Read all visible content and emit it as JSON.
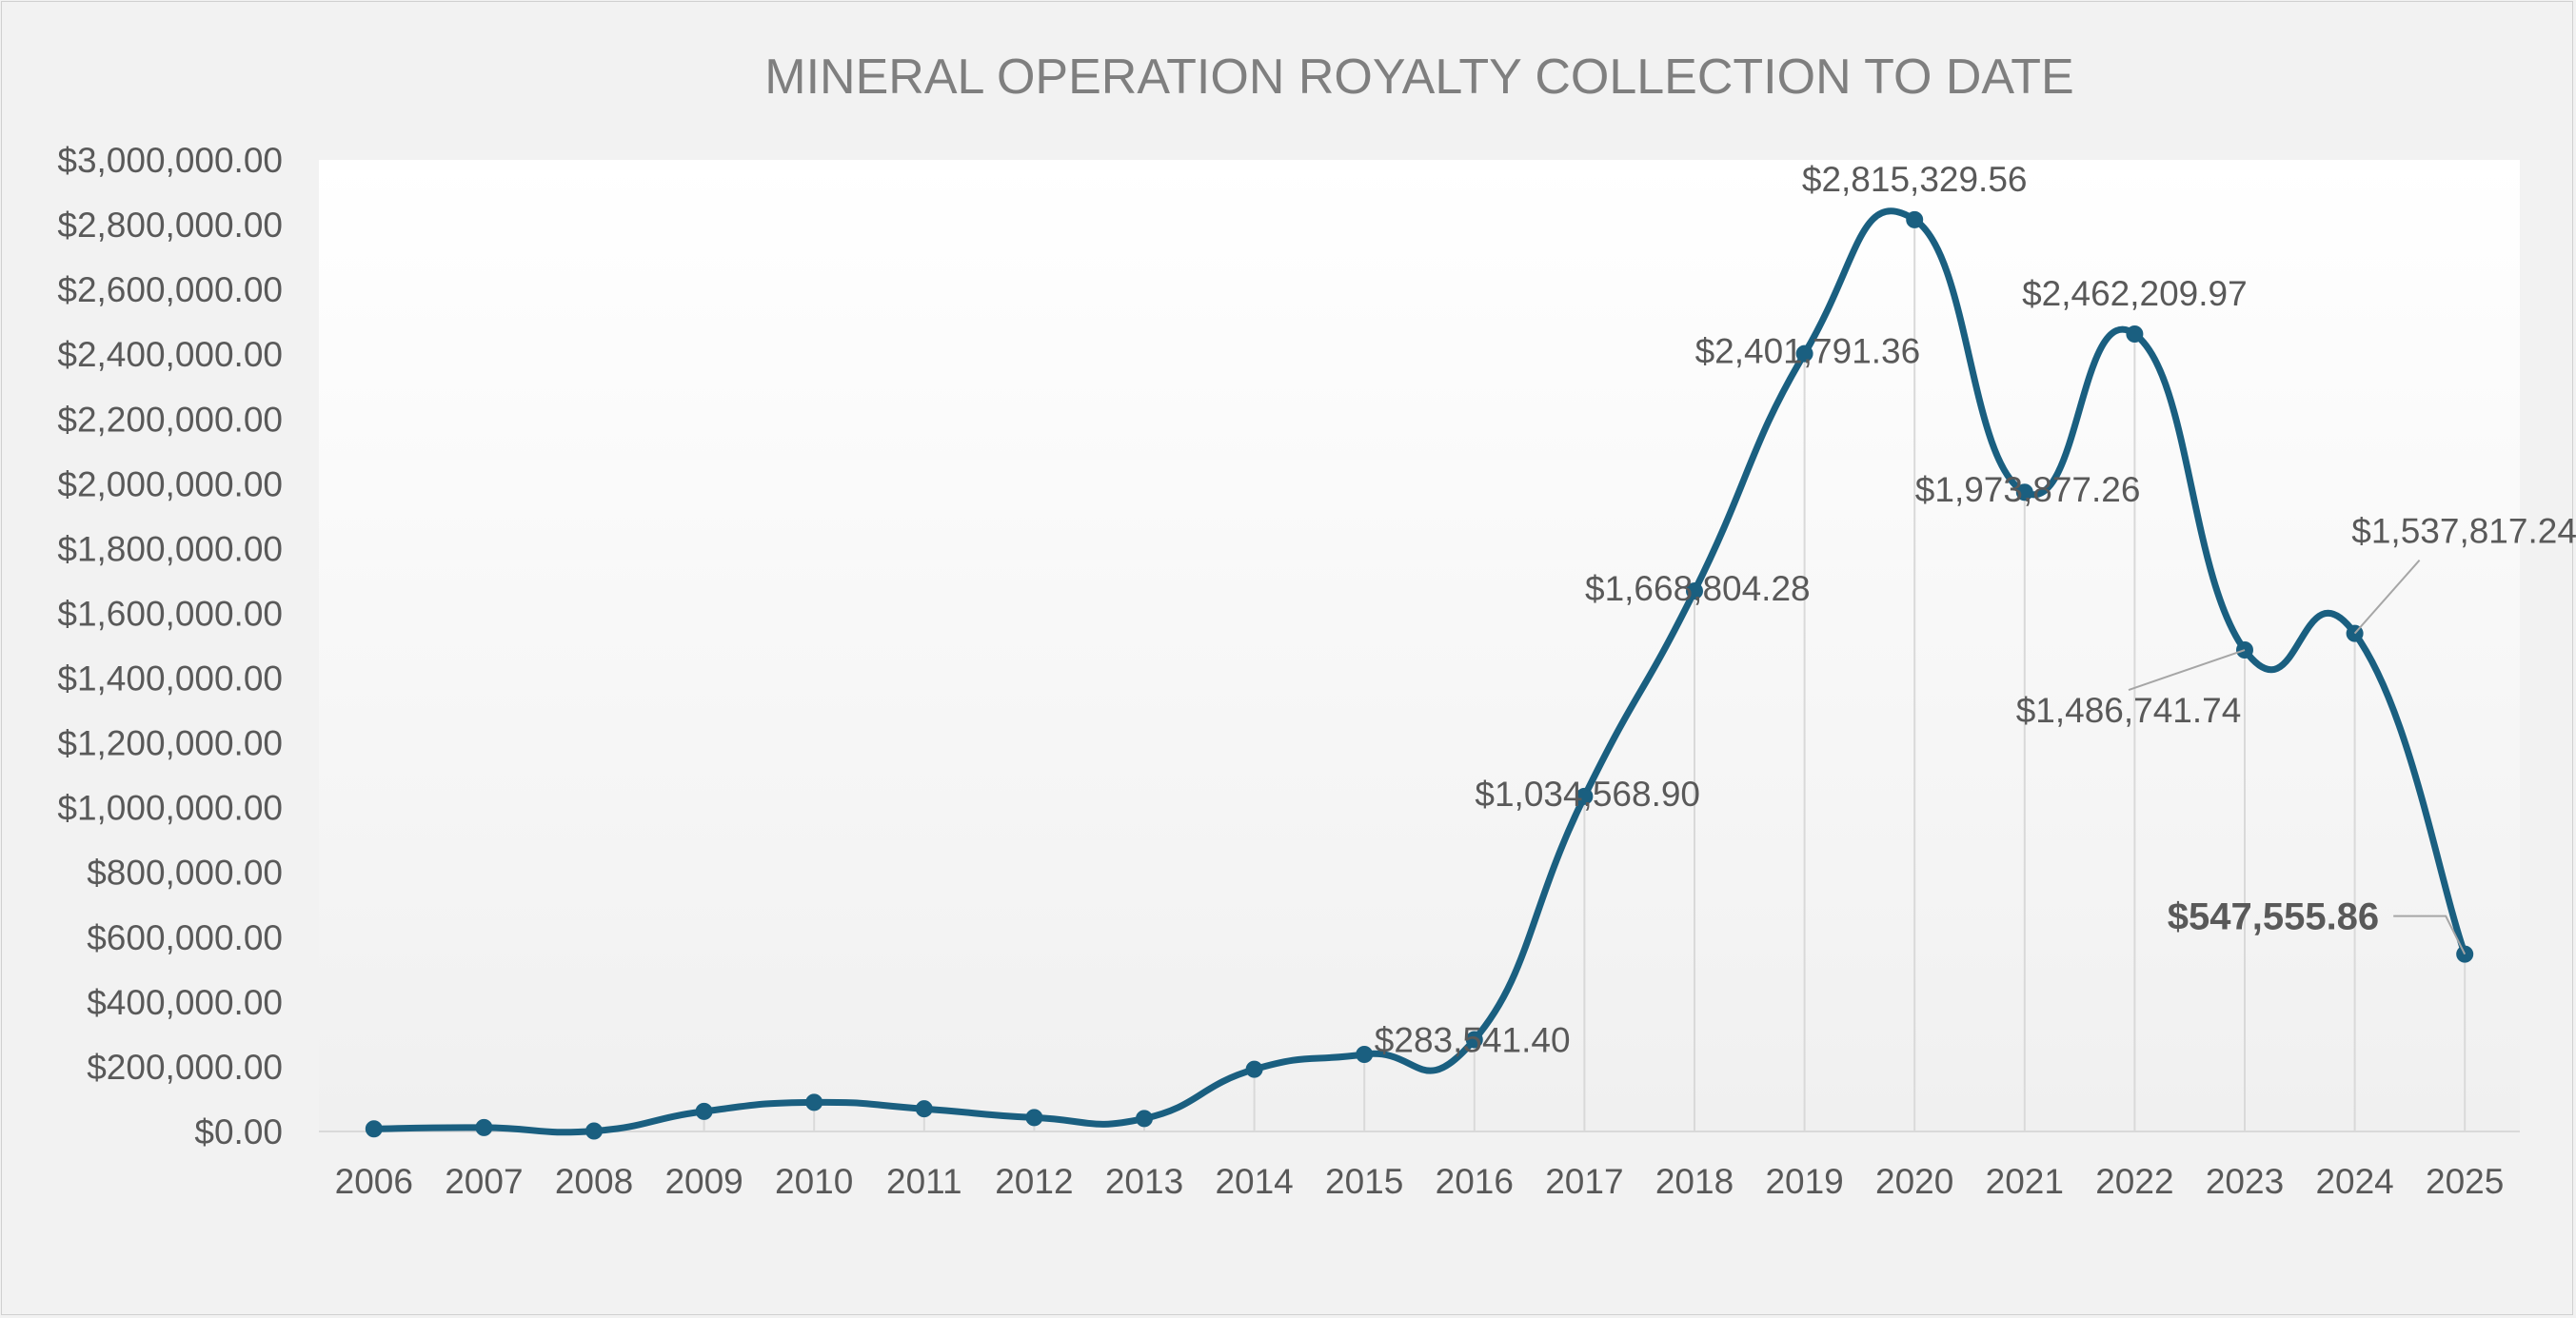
{
  "chart_data": {
    "type": "line",
    "title": "MINERAL OPERATION ROYALTY COLLECTION TO DATE",
    "xlabel": "",
    "ylabel": "",
    "categories": [
      "2006",
      "2007",
      "2008",
      "2009",
      "2010",
      "2011",
      "2012",
      "2013",
      "2014",
      "2015",
      "2016",
      "2017",
      "2018",
      "2019",
      "2020",
      "2021",
      "2022",
      "2023",
      "2024",
      "2025"
    ],
    "series": [
      {
        "values": [
          8000,
          12000,
          1500,
          62000,
          90000,
          70000,
          43000,
          40000,
          192000,
          238000,
          283541.4,
          1034568.9,
          1668804.28,
          2401791.36,
          2815329.56,
          1973877.26,
          2462209.97,
          1486741.74,
          1537817.24,
          547555.86
        ]
      }
    ],
    "ylim": [
      0,
      3000000
    ],
    "ytick_step": 200000,
    "yticks": [
      "$0.00",
      "$200,000.00",
      "$400,000.00",
      "$600,000.00",
      "$800,000.00",
      "$1,000,000.00",
      "$1,200,000.00",
      "$1,400,000.00",
      "$1,600,000.00",
      "$1,800,000.00",
      "$2,000,000.00",
      "$2,200,000.00",
      "$2,400,000.00",
      "$2,600,000.00",
      "$2,800,000.00",
      "$3,000,000.00"
    ],
    "data_labels": [
      {
        "year": "2016",
        "text": "$283,541.40",
        "anchor": "right",
        "leader": false,
        "bold": false
      },
      {
        "year": "2017",
        "text": "$1,034,568.90",
        "anchor": "left",
        "leader": false,
        "bold": false
      },
      {
        "year": "2018",
        "text": "$1,668,804.28",
        "anchor": "left",
        "leader": false,
        "bold": false
      },
      {
        "year": "2019",
        "text": "$2,401,791.36",
        "anchor": "left",
        "leader": false,
        "bold": false
      },
      {
        "year": "2020",
        "text": "$2,815,329.56",
        "anchor": "above",
        "leader": false,
        "bold": false
      },
      {
        "year": "2021",
        "text": "$1,973,877.26",
        "anchor": "left",
        "leader": false,
        "bold": false
      },
      {
        "year": "2022",
        "text": "$2,462,209.97",
        "anchor": "above",
        "leader": false,
        "bold": false
      },
      {
        "year": "2023",
        "text": "$1,486,741.74",
        "anchor": "below-left",
        "leader": true,
        "bold": false
      },
      {
        "year": "2024",
        "text": "$1,537,817.24",
        "anchor": "above-right",
        "leader": true,
        "bold": false
      },
      {
        "year": "2025",
        "text": "$547,555.86",
        "anchor": "left",
        "leader": true,
        "bold": true
      }
    ],
    "line_color": "#1a5f80",
    "label_color": "#595959",
    "axis_text_color": "#595959",
    "title_color": "#7f7f7f",
    "grid": false,
    "drop_lines": true,
    "legend": "none"
  }
}
